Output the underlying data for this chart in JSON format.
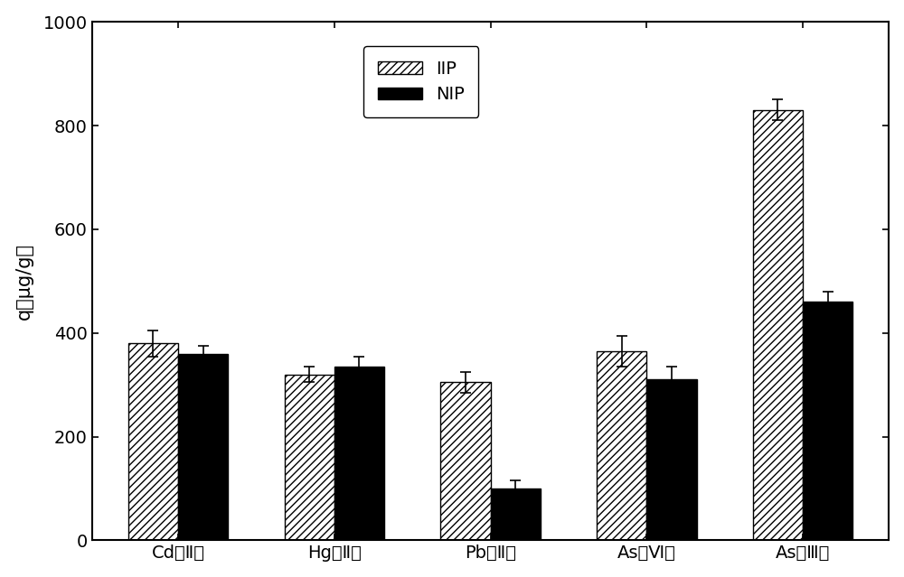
{
  "categories": [
    "Cd（Ⅱ）",
    "Hg（Ⅱ）",
    "Pb（Ⅱ）",
    "As（Ⅵ）",
    "As（Ⅲ）"
  ],
  "iip_values": [
    380,
    320,
    305,
    365,
    830
  ],
  "nip_values": [
    360,
    335,
    100,
    310,
    460
  ],
  "iip_errors": [
    25,
    15,
    20,
    30,
    20
  ],
  "nip_errors": [
    15,
    20,
    15,
    25,
    20
  ],
  "ylabel": "q（μg/g）",
  "ylim": [
    0,
    1000
  ],
  "yticks": [
    0,
    200,
    400,
    600,
    800,
    1000
  ],
  "bar_width": 0.32,
  "hatch_iip": "////",
  "color_iip": "white",
  "color_nip": "black",
  "edgecolor": "black",
  "legend_labels": [
    "IIP",
    "NIP"
  ],
  "figure_facecolor": "white",
  "axes_facecolor": "white",
  "figsize": [
    10.0,
    6.39
  ],
  "dpi": 100,
  "label_fontsize": 15,
  "tick_fontsize": 14,
  "legend_fontsize": 14
}
